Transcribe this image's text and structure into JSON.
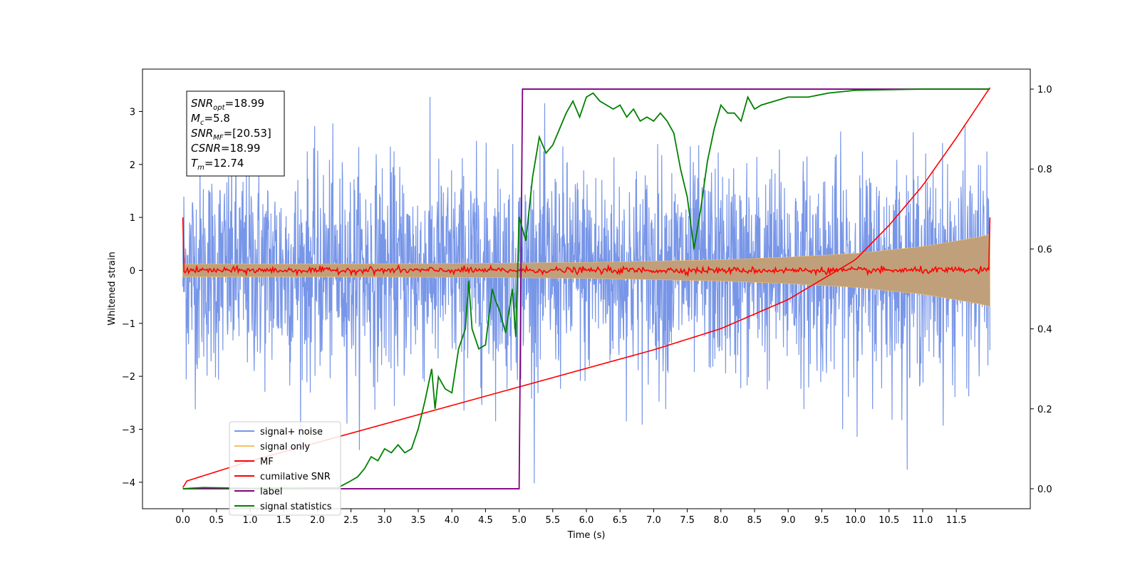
{
  "chart_data": {
    "type": "line",
    "xlabel": "Time (s)",
    "ylabel": "Whitened strain",
    "xlim": [
      -0.6,
      12.6
    ],
    "ylim": [
      -4.5,
      3.8
    ],
    "y2lim": [
      -0.05,
      1.05
    ],
    "xticks": [
      0.0,
      0.5,
      1.0,
      1.5,
      2.0,
      2.5,
      3.0,
      3.5,
      4.0,
      4.5,
      5.0,
      5.5,
      6.0,
      6.5,
      7.0,
      7.5,
      8.0,
      8.5,
      9.0,
      9.5,
      10.0,
      10.5,
      11.0,
      11.5
    ],
    "xtick_labels": [
      "0.0",
      "0.5",
      "1.0",
      "1.5",
      "2.0",
      "2.5",
      "3.0",
      "3.5",
      "4.0",
      "4.5",
      "5.0",
      "5.5",
      "6.0",
      "6.5",
      "7.0",
      "7.5",
      "8.0",
      "8.5",
      "9.0",
      "9.5",
      "10.0",
      "10.5",
      "11.0",
      "11.5"
    ],
    "yticks": [
      3,
      2,
      1,
      0,
      -1,
      -2,
      -3,
      -4
    ],
    "ytick_labels": [
      "3",
      "2",
      "1",
      "0",
      "−1",
      "−2",
      "−3",
      "−4"
    ],
    "y2ticks": [
      1.0,
      0.8,
      0.6,
      0.4,
      0.2,
      0.0
    ],
    "y2tick_labels": [
      "1.0",
      "0.8",
      "0.6",
      "0.4",
      "0.2",
      "0.0"
    ],
    "legend_position": "lower-left",
    "series": [
      {
        "name": "signal+ noise",
        "axis": "left",
        "color": "#7896e8",
        "kind": "noise",
        "x_range": [
          0.0,
          12.0
        ],
        "amplitude_sd": 1.0,
        "range": [
          -4.15,
          3.45
        ]
      },
      {
        "name": "signal only",
        "axis": "left",
        "color": "#f5c060",
        "fill_color": "#c0a07a",
        "kind": "chirp-envelope",
        "x_range": [
          0.0,
          12.0
        ],
        "envelope": {
          "x": [
            0,
            2,
            4,
            6,
            8,
            9,
            10,
            11,
            11.8,
            12.0
          ],
          "y": [
            0.12,
            0.12,
            0.13,
            0.15,
            0.2,
            0.25,
            0.32,
            0.45,
            0.62,
            0.68
          ]
        }
      },
      {
        "name": "MF",
        "axis": "left",
        "color": "#ff0000",
        "kind": "noise",
        "x_range": [
          0.0,
          12.0
        ],
        "baseline": 0.0,
        "amplitude_sd": 0.03,
        "endpoints": [
          1.0,
          1.0
        ]
      },
      {
        "name": "cumilative SNR",
        "axis": "left",
        "color": "#ff0000",
        "x": [
          0.0,
          0.05,
          0.5,
          1.0,
          2.0,
          3.0,
          4.0,
          5.0,
          6.0,
          7.0,
          8.0,
          9.0,
          10.0,
          10.5,
          11.0,
          11.5,
          12.0
        ],
        "y": [
          -4.1,
          -3.98,
          -3.8,
          -3.6,
          -3.25,
          -2.9,
          -2.55,
          -2.2,
          -1.85,
          -1.5,
          -1.1,
          -0.55,
          0.2,
          0.85,
          1.6,
          2.5,
          3.45
        ]
      },
      {
        "name": "label",
        "axis": "right",
        "color": "#800080",
        "x": [
          0.0,
          5.0,
          5.05,
          12.0
        ],
        "y": [
          0.0,
          0.0,
          1.0,
          1.0
        ]
      },
      {
        "name": "signal statistics",
        "axis": "right",
        "color": "#008000",
        "x": [
          0.0,
          0.3,
          1.0,
          2.0,
          2.3,
          2.5,
          2.6,
          2.7,
          2.8,
          2.9,
          3.0,
          3.1,
          3.2,
          3.3,
          3.4,
          3.5,
          3.6,
          3.7,
          3.75,
          3.8,
          3.9,
          4.0,
          4.1,
          4.2,
          4.25,
          4.3,
          4.4,
          4.5,
          4.6,
          4.65,
          4.7,
          4.8,
          4.9,
          4.95,
          5.0,
          5.1,
          5.2,
          5.3,
          5.4,
          5.5,
          5.6,
          5.7,
          5.8,
          5.9,
          6.0,
          6.1,
          6.2,
          6.3,
          6.4,
          6.5,
          6.6,
          6.7,
          6.8,
          6.9,
          7.0,
          7.1,
          7.2,
          7.3,
          7.4,
          7.5,
          7.6,
          7.7,
          7.8,
          7.9,
          8.0,
          8.1,
          8.2,
          8.3,
          8.4,
          8.5,
          8.6,
          8.8,
          9.0,
          9.3,
          9.6,
          10.0,
          11.0,
          12.0
        ],
        "y": [
          0.0,
          0.003,
          0.001,
          0.002,
          0.002,
          0.02,
          0.03,
          0.05,
          0.08,
          0.07,
          0.1,
          0.09,
          0.11,
          0.09,
          0.1,
          0.15,
          0.22,
          0.3,
          0.2,
          0.28,
          0.25,
          0.24,
          0.35,
          0.4,
          0.52,
          0.4,
          0.35,
          0.36,
          0.5,
          0.47,
          0.45,
          0.39,
          0.5,
          0.38,
          0.68,
          0.62,
          0.78,
          0.88,
          0.84,
          0.86,
          0.9,
          0.94,
          0.97,
          0.93,
          0.98,
          0.99,
          0.97,
          0.96,
          0.95,
          0.96,
          0.93,
          0.95,
          0.92,
          0.93,
          0.92,
          0.94,
          0.92,
          0.89,
          0.8,
          0.73,
          0.6,
          0.7,
          0.82,
          0.9,
          0.96,
          0.94,
          0.94,
          0.92,
          0.98,
          0.95,
          0.96,
          0.97,
          0.98,
          0.98,
          0.99,
          0.997,
          1.0,
          1.0
        ]
      }
    ],
    "info_box": {
      "lines": [
        {
          "main": "SNR",
          "sub": "opt",
          "value": "=18.99"
        },
        {
          "main": "M",
          "sub": "c",
          "value": "=5.8"
        },
        {
          "main": "SNR",
          "sub": "MF",
          "value": "=[20.53]"
        },
        {
          "main": "CSNR",
          "sub": "",
          "value": "=18.99"
        },
        {
          "main": "T",
          "sub": "m",
          "value": "=12.74"
        }
      ]
    }
  }
}
